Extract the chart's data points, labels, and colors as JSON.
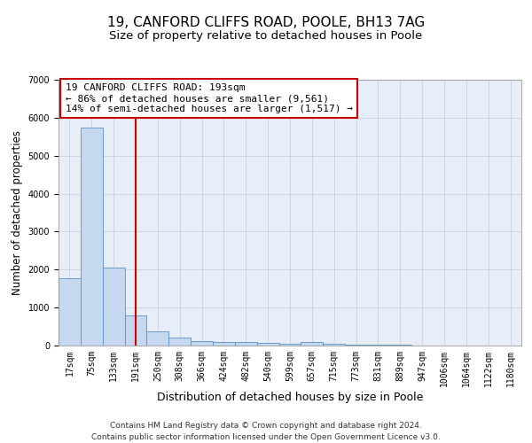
{
  "title1": "19, CANFORD CLIFFS ROAD, POOLE, BH13 7AG",
  "title2": "Size of property relative to detached houses in Poole",
  "xlabel": "Distribution of detached houses by size in Poole",
  "ylabel": "Number of detached properties",
  "bar_labels": [
    "17sqm",
    "75sqm",
    "133sqm",
    "191sqm",
    "250sqm",
    "308sqm",
    "366sqm",
    "424sqm",
    "482sqm",
    "540sqm",
    "599sqm",
    "657sqm",
    "715sqm",
    "773sqm",
    "831sqm",
    "889sqm",
    "947sqm",
    "1006sqm",
    "1064sqm",
    "1122sqm",
    "1180sqm"
  ],
  "bar_values": [
    1780,
    5750,
    2050,
    800,
    370,
    215,
    120,
    90,
    90,
    65,
    50,
    95,
    55,
    30,
    20,
    15,
    10,
    8,
    5,
    4,
    3
  ],
  "bar_color": "#c5d8f0",
  "bar_edge_color": "#5b8fc9",
  "background_color": "#e8eef8",
  "grid_color": "#c8d0e0",
  "annotation_box_text": "19 CANFORD CLIFFS ROAD: 193sqm\n← 86% of detached houses are smaller (9,561)\n14% of semi-detached houses are larger (1,517) →",
  "annotation_box_color": "#cc0000",
  "vline_color": "#cc0000",
  "ylim": [
    0,
    7000
  ],
  "yticks": [
    0,
    1000,
    2000,
    3000,
    4000,
    5000,
    6000,
    7000
  ],
  "footnote": "Contains HM Land Registry data © Crown copyright and database right 2024.\nContains public sector information licensed under the Open Government Licence v3.0.",
  "title1_fontsize": 11,
  "title2_fontsize": 9.5,
  "xlabel_fontsize": 9,
  "ylabel_fontsize": 8.5,
  "tick_fontsize": 7,
  "annot_fontsize": 8,
  "footnote_fontsize": 6.5
}
